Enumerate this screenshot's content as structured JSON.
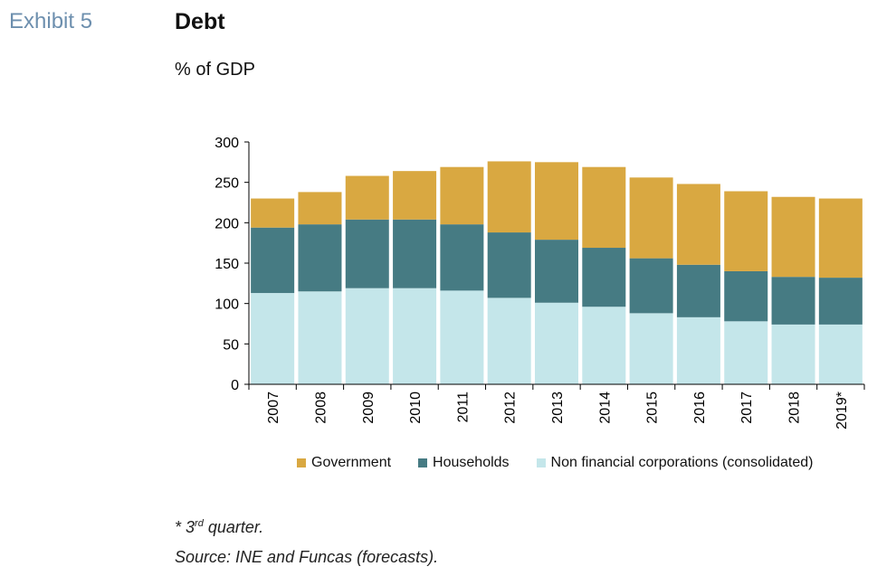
{
  "header": {
    "exhibit": "Exhibit 5",
    "title": "Debt",
    "subtitle": "% of GDP"
  },
  "footnotes": {
    "note_prefix": "* 3",
    "note_sup": "rd",
    "note_suffix": " quarter.",
    "source": "Source: INE and Funcas (forecasts)."
  },
  "chart_data": {
    "type": "bar",
    "stacked": true,
    "categories": [
      "2007",
      "2008",
      "2009",
      "2010",
      "2011",
      "2012",
      "2013",
      "2014",
      "2015",
      "2016",
      "2017",
      "2018",
      "2019*"
    ],
    "series": [
      {
        "name": "Non financial corporations (consolidated)",
        "color": "#c4e6ea",
        "values": [
          113,
          115,
          119,
          119,
          116,
          107,
          101,
          96,
          88,
          83,
          78,
          74,
          74
        ]
      },
      {
        "name": "Households",
        "color": "#467b83",
        "values": [
          81,
          83,
          85,
          85,
          82,
          81,
          78,
          73,
          68,
          65,
          62,
          59,
          58
        ]
      },
      {
        "name": "Government",
        "color": "#d9a841",
        "values": [
          36,
          40,
          54,
          60,
          71,
          88,
          96,
          100,
          100,
          100,
          99,
          99,
          98
        ]
      }
    ],
    "legend_order": [
      "Government",
      "Households",
      "Non financial corporations (consolidated)"
    ],
    "ylim": [
      0,
      300
    ],
    "yticks": [
      0,
      50,
      100,
      150,
      200,
      250,
      300
    ],
    "grid": false,
    "legend_position": "bottom"
  }
}
